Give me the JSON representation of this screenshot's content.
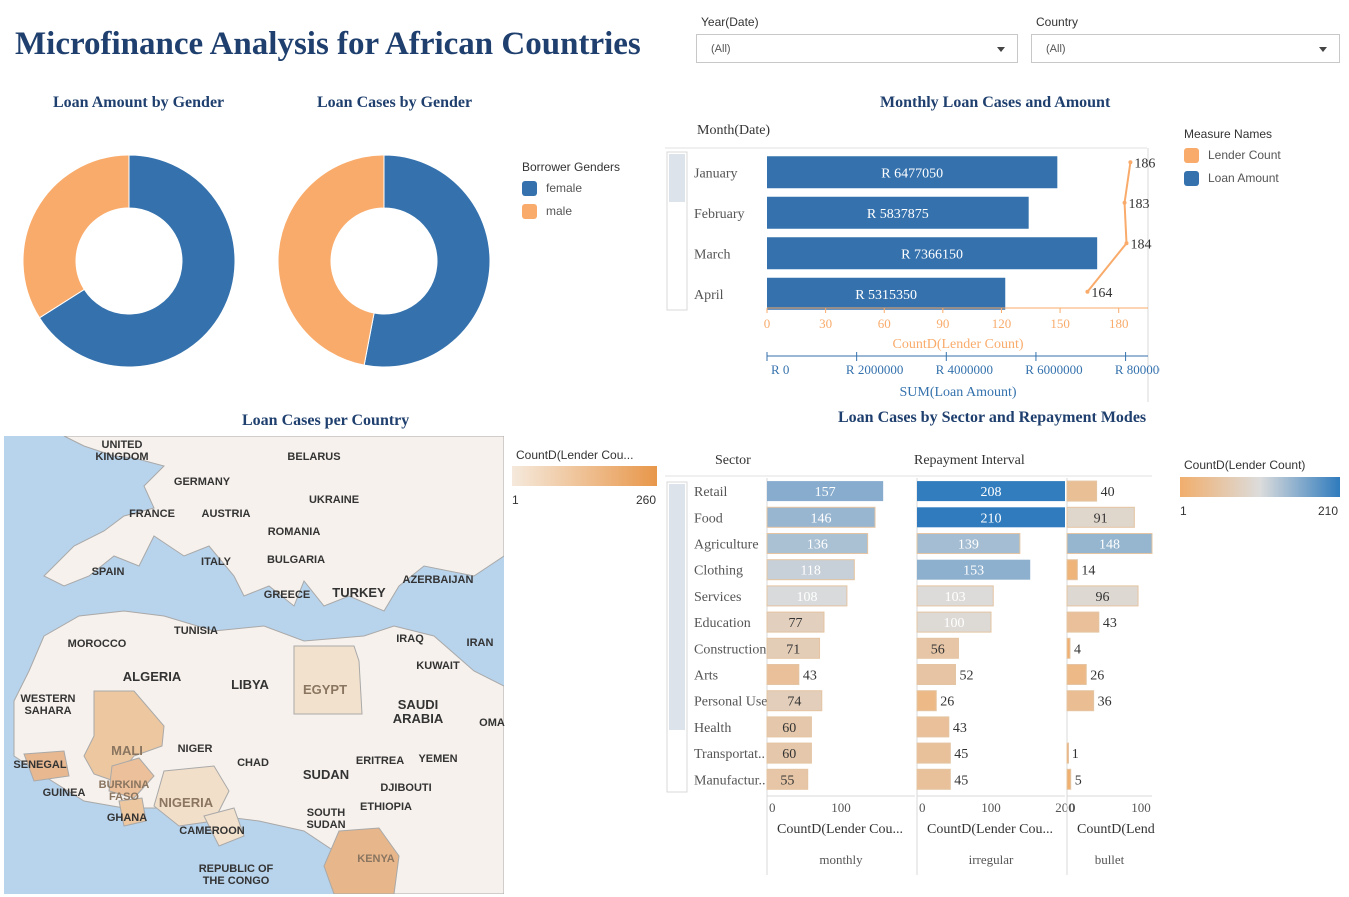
{
  "header": {
    "title": "Microfinance Analysis for African Countries"
  },
  "filters": {
    "year": {
      "label": "Year(Date)",
      "value": "(All)"
    },
    "country": {
      "label": "Country",
      "value": "(All)"
    }
  },
  "colors": {
    "female": "#3572ad",
    "male": "#f9ab6b",
    "title": "#1f3f6e",
    "lender": "#f9ab6b",
    "loan": "#3572ad"
  },
  "gender_legend": {
    "title": "Borrower Genders",
    "items": [
      "female",
      "male"
    ]
  },
  "measure_legend": {
    "title": "Measure Names",
    "items": [
      "Lender Count",
      "Loan Amount"
    ]
  },
  "map": {
    "title": "Loan Cases per Country",
    "legend_title": "CountD(Lender Cou...",
    "legend_min": "1",
    "legend_max": "260",
    "labels": [
      "UNITED KINGDOM",
      "BELARUS",
      "GERMANY",
      "UKRAINE",
      "FRANCE",
      "AUSTRIA",
      "ROMANIA",
      "BULGARIA",
      "ITALY",
      "SPAIN",
      "AZERBAIJAN",
      "TURKEY",
      "GREECE",
      "TUNISIA",
      "IRAQ",
      "IRAN",
      "MOROCCO",
      "KUWAIT",
      "ALGERIA",
      "LIBYA",
      "EGYPT",
      "SAUDI ARABIA",
      "WESTERN SAHARA",
      "OMA",
      "MALI",
      "NIGER",
      "CHAD",
      "SUDAN",
      "ERITREA",
      "YEMEN",
      "SENEGAL",
      "BURKINA FASO",
      "DJIBOUTI",
      "NIGERIA",
      "GUINEA",
      "ETHIOPIA",
      "SOUTH SUDAN",
      "GHANA",
      "CAMEROON",
      "REPUBLIC OF THE CONGO",
      "KENYA"
    ]
  },
  "sector_legend": {
    "title": "CountD(Lender Count)",
    "min": "1",
    "max": "210"
  },
  "chart_data": [
    {
      "type": "pie",
      "title": "Loan Amount by Gender",
      "labels": [
        "female",
        "male"
      ],
      "values": [
        66,
        34
      ]
    },
    {
      "type": "pie",
      "title": "Loan Cases by Gender",
      "labels": [
        "female",
        "male"
      ],
      "values": [
        53,
        47
      ]
    },
    {
      "type": "bar",
      "title": "Monthly Loan Cases and Amount",
      "row_header": "Month(Date)",
      "categories": [
        "January",
        "February",
        "March",
        "April"
      ],
      "series": [
        {
          "name": "Loan Amount",
          "values": [
            6477050,
            5837875,
            7366150,
            5315350
          ],
          "labels": [
            "R 6477050",
            "R 5837875",
            "R 7366150",
            "R 5315350"
          ]
        },
        {
          "name": "Lender Count",
          "values": [
            186,
            183,
            184,
            164
          ]
        }
      ],
      "axis_count": {
        "label": "CountD(Lender Count)",
        "ticks": [
          "0",
          "30",
          "60",
          "90",
          "120",
          "150",
          "180"
        ],
        "range": [
          0,
          195
        ]
      },
      "axis_amount": {
        "label": "SUM(Loan Amount)",
        "ticks": [
          "R 0",
          "R 2000000",
          "R 4000000",
          "R 6000000",
          "R 8000000"
        ],
        "range": [
          0,
          8500000
        ]
      }
    },
    {
      "type": "bar",
      "title": "Loan Cases by Sector and Repayment Modes",
      "row_header": "Sector",
      "column_header": "Repayment Interval",
      "categories": [
        "Retail",
        "Food",
        "Agriculture",
        "Clothing",
        "Services",
        "Education",
        "Construction",
        "Arts",
        "Personal Use",
        "Health",
        "Transportat..",
        "Manufactur.."
      ],
      "series": [
        {
          "name": "monthly",
          "values": [
            157,
            146,
            136,
            118,
            108,
            77,
            71,
            43,
            74,
            60,
            60,
            55
          ],
          "axis_label": "CountD(Lender Cou...",
          "ticks": [
            "0",
            "100"
          ]
        },
        {
          "name": "irregular",
          "values": [
            208,
            210,
            139,
            153,
            103,
            100,
            56,
            52,
            26,
            43,
            45,
            45
          ],
          "axis_label": "CountD(Lender Cou...",
          "ticks": [
            "0",
            "100",
            "200"
          ]
        },
        {
          "name": "bullet",
          "values": [
            40,
            91,
            148,
            14,
            96,
            43,
            4,
            26,
            36,
            null,
            1,
            5
          ],
          "axis_label": "CountD(Lend",
          "ticks": [
            "0",
            "100"
          ]
        }
      ]
    }
  ]
}
